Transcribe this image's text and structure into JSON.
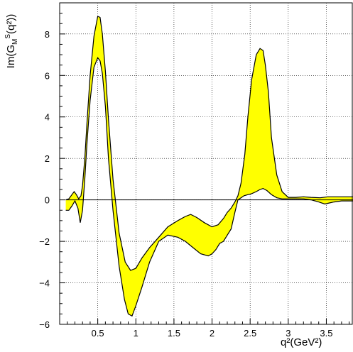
{
  "chart_data": {
    "type": "area",
    "title": "",
    "xlabel": "q²(GeV²)",
    "ylabel": "Im(G_M^S(q²))",
    "ylabel_parts": {
      "main": "Im(G",
      "sub": "M",
      "sup": "S",
      "tail": "(q²))"
    },
    "xlim": [
      0,
      3.85
    ],
    "ylim": [
      -6,
      9.5
    ],
    "x_ticks": [
      0.5,
      1,
      1.5,
      2,
      2.5,
      3,
      3.5
    ],
    "x_tick_labels": [
      "0.5",
      "1",
      "1.5",
      "2",
      "2.5",
      "3",
      "3.5"
    ],
    "y_ticks": [
      -6,
      -4,
      -2,
      0,
      2,
      4,
      6,
      8
    ],
    "y_tick_labels": [
      "−6",
      "−4",
      "−2",
      "0",
      "2",
      "4",
      "6",
      "8"
    ],
    "grid": true,
    "fill_color": "#ffff00",
    "line_color": "#000000",
    "series": [
      {
        "x": [
          0.08,
          0.12,
          0.16,
          0.19,
          0.22,
          0.25,
          0.28,
          0.3,
          0.33,
          0.36,
          0.4,
          0.45,
          0.5,
          0.53,
          0.56,
          0.6,
          0.64,
          0.7,
          0.78,
          0.86,
          0.93,
          1.0,
          1.08,
          1.18,
          1.3,
          1.42,
          1.55,
          1.65,
          1.72,
          1.8,
          1.9,
          2.0,
          2.08,
          2.15,
          2.2,
          2.25,
          2.3,
          2.34,
          2.38,
          2.43,
          2.47,
          2.52,
          2.58,
          2.63,
          2.67,
          2.7,
          2.74,
          2.78,
          2.85,
          2.92,
          3.0,
          3.1,
          3.2,
          3.3,
          3.42,
          3.52,
          3.6,
          3.7,
          3.85
        ],
        "y": [
          0.0,
          0.05,
          0.25,
          0.4,
          0.25,
          0.05,
          0.2,
          0.7,
          2.0,
          3.8,
          6.0,
          7.9,
          8.85,
          8.8,
          8.0,
          6.2,
          3.9,
          1.0,
          -1.6,
          -3.0,
          -3.4,
          -3.3,
          -2.8,
          -2.3,
          -1.8,
          -1.3,
          -1.0,
          -0.8,
          -0.7,
          -0.85,
          -1.1,
          -1.3,
          -1.2,
          -0.9,
          -0.6,
          -0.4,
          -0.1,
          0.2,
          0.8,
          2.2,
          4.0,
          5.8,
          7.0,
          7.3,
          7.2,
          6.5,
          5.2,
          3.0,
          1.2,
          0.4,
          0.12,
          0.12,
          0.15,
          0.12,
          0.1,
          0.15,
          0.15,
          0.15,
          0.15
        ]
      },
      {
        "x": [
          0.08,
          0.12,
          0.16,
          0.2,
          0.24,
          0.27,
          0.3,
          0.33,
          0.36,
          0.4,
          0.45,
          0.5,
          0.53,
          0.56,
          0.6,
          0.64,
          0.7,
          0.78,
          0.85,
          0.9,
          0.95,
          1.0,
          1.08,
          1.18,
          1.3,
          1.42,
          1.55,
          1.65,
          1.75,
          1.85,
          1.95,
          2.0,
          2.05,
          2.1,
          2.15,
          2.2,
          2.25,
          2.3,
          2.34,
          2.38,
          2.42,
          2.47,
          2.52,
          2.58,
          2.63,
          2.67,
          2.72,
          2.78,
          2.85,
          2.92,
          3.0,
          3.1,
          3.2,
          3.3,
          3.4,
          3.48,
          3.54,
          3.6,
          3.7,
          3.85
        ],
        "y": [
          -0.5,
          -0.5,
          -0.3,
          -0.05,
          -0.4,
          -1.1,
          -0.5,
          1.0,
          2.8,
          4.8,
          6.4,
          6.85,
          6.7,
          6.1,
          4.5,
          2.0,
          -0.5,
          -3.2,
          -4.8,
          -5.5,
          -5.6,
          -5.1,
          -4.2,
          -3.0,
          -2.0,
          -1.7,
          -1.8,
          -2.0,
          -2.3,
          -2.6,
          -2.7,
          -2.6,
          -2.4,
          -2.1,
          -2.0,
          -1.7,
          -1.4,
          -0.6,
          0.0,
          0.1,
          0.2,
          0.25,
          0.3,
          0.4,
          0.5,
          0.55,
          0.45,
          0.25,
          0.1,
          0.05,
          0.05,
          0.05,
          0.05,
          0.0,
          -0.1,
          -0.2,
          -0.15,
          -0.1,
          -0.05,
          -0.05
        ]
      }
    ]
  }
}
